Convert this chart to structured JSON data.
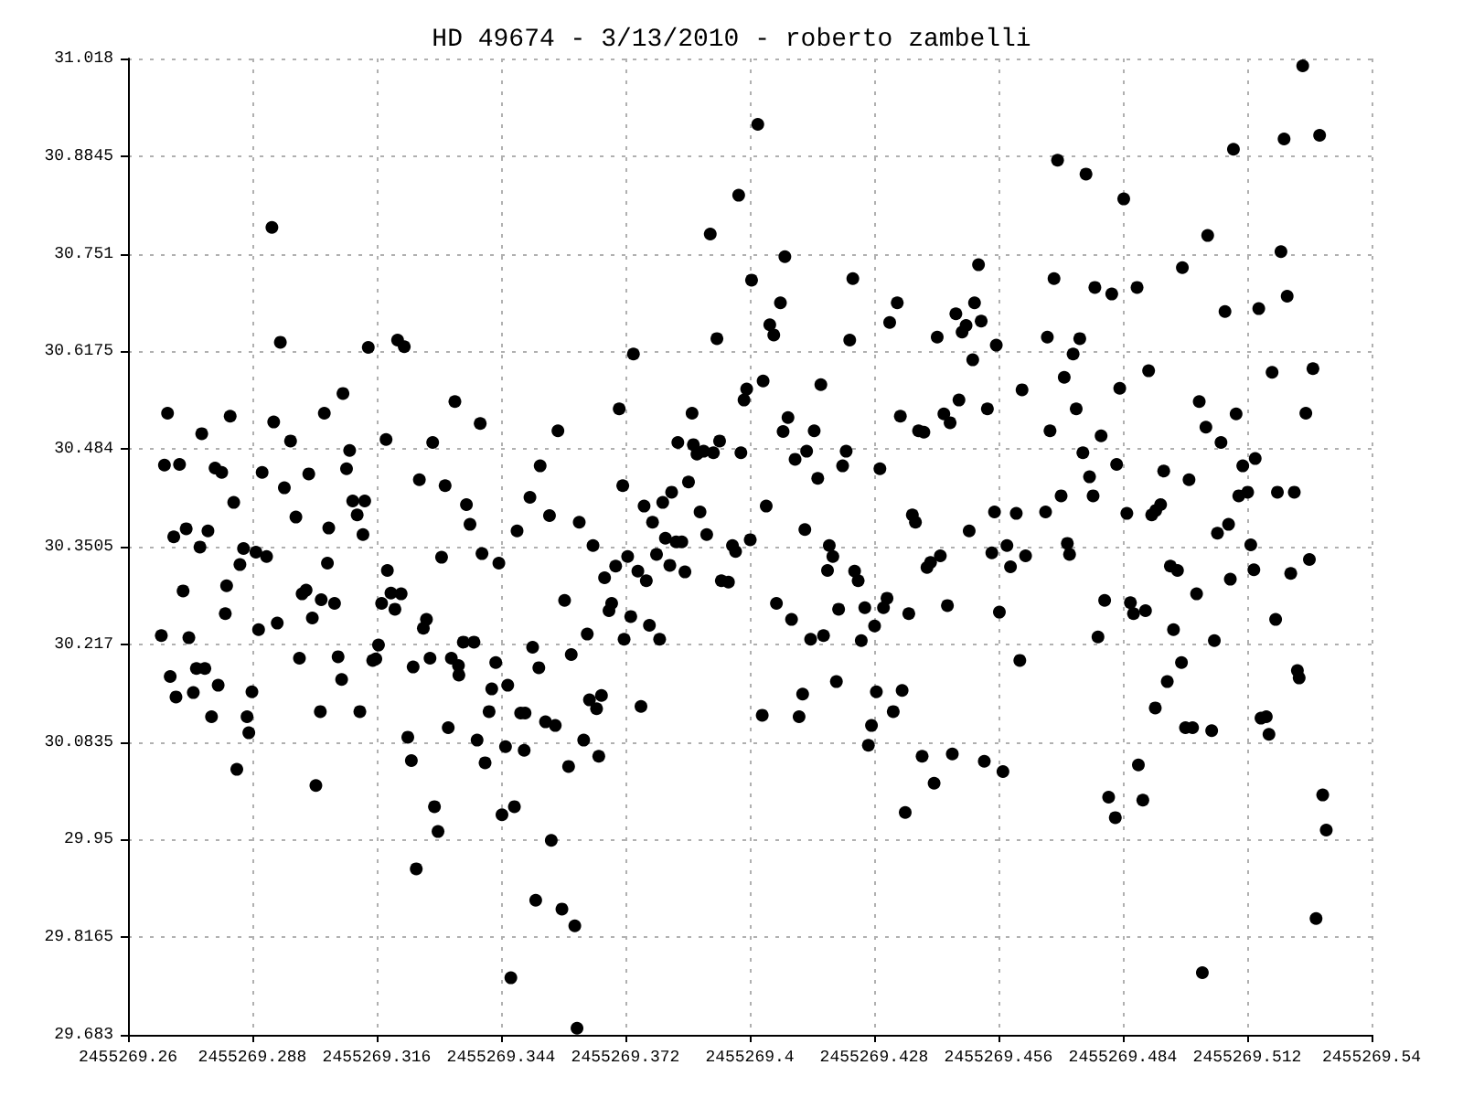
{
  "chart_data": {
    "type": "scatter",
    "title": "HD 49674 - 3/13/2010 - roberto zambelli",
    "color": "#000000",
    "marker": "circle",
    "grid": true,
    "xlim": [
      2455269.26,
      2455269.54
    ],
    "ylim": [
      29.683,
      31.018
    ],
    "xticks": [
      2455269.26,
      2455269.288,
      2455269.316,
      2455269.344,
      2455269.372,
      2455269.4,
      2455269.428,
      2455269.456,
      2455269.484,
      2455269.512,
      2455269.54
    ],
    "yticks": [
      29.683,
      29.8165,
      29.95,
      30.0835,
      30.217,
      30.3505,
      30.484,
      30.6175,
      30.751,
      30.8845,
      31.018
    ],
    "x": [
      2455269.2689,
      2455269.2682,
      2455269.2716,
      2455269.2766,
      2455269.283,
      2455269.2796,
      2455269.2811,
      2455269.2703,
      2455269.2731,
      2455269.2762,
      2455269.278,
      2455269.2838,
      2455269.2724,
      2455269.2675,
      2455269.2737,
      2455269.2695,
      2455269.2708,
      2455269.2747,
      2455269.2754,
      2455269.2773,
      2455269.2803,
      2455269.2788,
      2455269.2845,
      2455269.2819,
      2455269.2822,
      2455269.2852,
      2455269.286,
      2455269.2868,
      2455269.2872,
      2455269.2879,
      2455269.2888,
      2455269.2912,
      2455269.2894,
      2455269.2902,
      2455269.2924,
      2455269.2943,
      2455269.2928,
      2455269.2966,
      2455269.2952,
      2455269.2978,
      2455269.3007,
      2455269.3042,
      2455269.2936,
      2455269.2986,
      2455269.2992,
      2455269.3001,
      2455269.3015,
      2455269.3033,
      2455269.3023,
      2455269.3035,
      2455269.3049,
      2455269.3052,
      2455269.3084,
      2455269.3099,
      2455269.3092,
      2455269.3106,
      2455269.3133,
      2455269.3116,
      2455269.3129,
      2455269.3065,
      2455269.3073,
      2455269.3081,
      2455269.3122,
      2455269.3141,
      2455269.3181,
      2455269.3184,
      2455269.3171,
      2455269.3192,
      2455269.3201,
      2455269.3215,
      2455269.3164,
      2455269.3151,
      2455269.3158,
      2455269.3207,
      2455269.3222,
      2455269.3256,
      2455269.3286,
      2455269.3314,
      2455269.3306,
      2455269.3272,
      2455269.3265,
      2455269.3242,
      2455269.328,
      2455269.323,
      2455269.3238,
      2455269.329,
      2455269.3298,
      2455269.3249,
      2455269.3336,
      2455269.3362,
      2455269.337,
      2455269.3397,
      2455269.3393,
      2455269.3435,
      2455269.3328,
      2455269.3344,
      2455269.3345,
      2455269.3355,
      2455269.3379,
      2455269.3321,
      2455269.3386,
      2455269.3404,
      2455269.3413,
      2455269.3419,
      2455269.3428,
      2455269.3455,
      2455269.345,
      2455269.3492,
      2455269.3484,
      2455269.3494,
      2455269.3511,
      2455269.3525,
      2455269.3442,
      2455269.347,
      2455269.3462,
      2455269.3518,
      2455269.3505,
      2455269.3476,
      2455269.3528,
      2455269.3549,
      2455269.3568,
      2455269.3616,
      2455269.3647,
      2455269.3583,
      2455269.3598,
      2455269.3634,
      2455269.3673,
      2455269.3683,
      2455269.3689,
      2455269.3698,
      2455269.3706,
      2455269.3714,
      2455269.3725,
      2455269.3738,
      2455269.3732,
      2455269.3717,
      2455269.3748,
      2455269.3767,
      2455269.3774,
      2455269.3797,
      2455269.3755,
      2455269.3762,
      2455269.3781,
      2455269.379,
      2455269.3804,
      2455269.381,
      2455269.3824,
      2455269.382,
      2455269.3834,
      2455269.3847,
      2455269.3838,
      2455269.3854,
      2455269.3862,
      2455269.387,
      2455269.3873,
      2455269.3881,
      2455269.3896,
      2455269.3888,
      2455269.3903,
      2455269.3918,
      2455269.3932,
      2455269.3911,
      2455269.3926,
      2455269.3936,
      2455269.3952,
      2455269.3961,
      2455269.3968,
      2455269.398,
      2455269.3975,
      2455269.3987,
      2455269.3993,
      2455269.4004,
      2455269.4001,
      2455269.354,
      2455269.3562,
      2455269.3592,
      2455269.3626,
      2455269.3639,
      2455269.3655,
      2455269.3666,
      2455269.366,
      2455269.3553,
      2455269.3577,
      2455269.3606,
      2455269.3611,
      2455269.4018,
      2455269.4079,
      2455269.4069,
      2455269.4045,
      2455269.4054,
      2455269.403,
      2455269.4232,
      2455269.4225,
      2455269.416,
      2455269.4086,
      2455269.4075,
      2455269.4145,
      2455269.4102,
      2455269.4128,
      2455269.4153,
      2455269.4217,
      2455269.4209,
      2455269.4037,
      2455269.4124,
      2455269.4179,
      2455269.4187,
      2455269.4175,
      2455269.4236,
      2455269.4244,
      2455269.406,
      2455269.4094,
      2455269.4137,
      2455269.4166,
      2455269.42,
      2455269.4259,
      2455269.4251,
      2455269.4195,
      2455269.4119,
      2455269.4111,
      2455269.4028,
      2455269.4281,
      2455269.4301,
      2455269.4309,
      2455269.4358,
      2455269.4285,
      2455269.4274,
      2455269.4267,
      2455269.4323,
      2455269.4343,
      2455269.435,
      2455269.4388,
      2455269.4415,
      2455269.4456,
      2455269.4293,
      2455269.4315,
      2455269.4332,
      2455269.4339,
      2455269.438,
      2455269.4392,
      2455269.4366,
      2455269.4373,
      2455269.4399,
      2455269.4407,
      2455269.4429,
      2455269.4445,
      2455269.4422,
      2455269.4464,
      2455269.4478,
      2455269.4437,
      2455269.4451,
      2455269.4471,
      2455269.4487,
      2455269.4506,
      2455269.4521,
      2455269.4515,
      2455269.4502,
      2455269.4555,
      2455269.4535,
      2455269.4494,
      2455269.4551,
      2455269.4545,
      2455269.4579,
      2455269.4587,
      2455269.4621,
      2455269.46,
      2455269.4562,
      2455269.4608,
      2455269.4528,
      2455269.457,
      2455269.4613,
      2455269.467,
      2455269.4685,
      2455269.4693,
      2455269.4757,
      2455269.4842,
      2455269.4777,
      2455269.4815,
      2455269.4872,
      2455269.4743,
      2455269.4728,
      2455269.4708,
      2455269.4735,
      2455269.4676,
      2455269.4791,
      2455269.475,
      2455269.4765,
      2455269.4826,
      2455269.4773,
      2455269.4701,
      2455269.4666,
      2455269.4833,
      2455269.4898,
      2455269.4849,
      2455269.4932,
      2455269.4925,
      2455269.4905,
      2455269.4914,
      2455269.4715,
      2455269.472,
      2455269.4799,
      2455269.4784,
      2455269.4857,
      2455269.4864,
      2455269.4891,
      2455269.4947,
      2455269.4954,
      2455269.494,
      2455269.4913,
      2455269.4875,
      2455269.4885,
      2455269.4808,
      2455269.4823,
      2455269.4963,
      2455269.4972,
      2455269.4989,
      2455269.5006,
      2455269.4981,
      2455269.4997,
      2455269.504,
      2455269.5046,
      2455269.5012,
      2455269.5027,
      2455269.5061,
      2455269.5095,
      2455269.511,
      2455269.5138,
      2455269.5101,
      2455269.5121,
      2455269.5053,
      2455269.5078,
      2455269.5082,
      2455269.5128,
      2455269.5135,
      2455269.4974,
      2455269.5031,
      2455269.507,
      2455269.5089,
      2455269.5146,
      2455269.5196,
      2455269.521,
      2455269.5203,
      2455269.5245,
      2455269.5283,
      2455269.5176,
      2455269.5268,
      2455269.5252,
      2455269.5188,
      2455269.5226,
      2455269.5218,
      2455269.526,
      2455269.5184,
      2455269.5233,
      2455269.5237,
      2455269.5151,
      2455269.5163,
      2455269.5169,
      2455269.529,
      2455269.5298,
      2455269.5275,
      2455269.5019
    ],
    "values": [
      30.533,
      30.462,
      30.463,
      30.505,
      30.529,
      30.458,
      30.452,
      30.364,
      30.375,
      30.35,
      30.372,
      30.411,
      30.29,
      30.229,
      30.226,
      30.173,
      30.145,
      30.151,
      30.184,
      30.184,
      30.161,
      30.118,
      30.046,
      30.259,
      30.297,
      30.326,
      30.348,
      30.118,
      30.096,
      30.152,
      30.343,
      30.337,
      30.237,
      30.452,
      30.787,
      30.63,
      30.521,
      30.495,
      30.431,
      30.391,
      30.45,
      30.533,
      30.246,
      30.198,
      30.286,
      30.291,
      30.253,
      30.125,
      30.024,
      30.278,
      30.328,
      30.376,
      30.56,
      30.482,
      30.457,
      30.413,
      30.413,
      30.394,
      30.367,
      30.273,
      30.2,
      30.169,
      30.125,
      30.623,
      30.497,
      30.318,
      30.273,
      30.287,
      30.265,
      30.286,
      30.216,
      30.195,
      30.197,
      30.633,
      30.624,
      30.442,
      30.493,
      30.434,
      30.336,
      30.251,
      30.239,
      30.186,
      30.198,
      30.09,
      30.058,
      29.995,
      29.961,
      29.91,
      30.549,
      30.408,
      30.381,
      30.341,
      30.519,
      30.328,
      30.198,
      30.188,
      30.175,
      30.22,
      30.22,
      30.103,
      30.086,
      30.055,
      30.125,
      30.156,
      30.192,
      30.161,
      30.077,
      30.072,
      30.123,
      30.123,
      30.213,
      30.185,
      29.984,
      29.995,
      29.761,
      29.867,
      30.418,
      30.372,
      30.461,
      30.393,
      30.509,
      30.384,
      30.352,
      30.277,
      30.203,
      30.231,
      30.308,
      30.263,
      30.273,
      30.324,
      30.539,
      30.434,
      30.337,
      30.614,
      30.255,
      30.224,
      30.317,
      30.304,
      30.243,
      30.224,
      30.132,
      30.406,
      30.384,
      30.34,
      30.411,
      30.362,
      30.425,
      30.325,
      30.357,
      30.357,
      30.493,
      30.316,
      30.439,
      30.533,
      30.49,
      30.477,
      30.481,
      30.398,
      30.367,
      30.479,
      30.495,
      30.778,
      30.635,
      30.304,
      30.302,
      30.352,
      30.344,
      30.479,
      30.831,
      30.551,
      30.566,
      30.715,
      30.36,
      30.111,
      30.106,
      30.05,
      30.086,
      30.141,
      30.129,
      30.147,
      30.064,
      29.949,
      29.855,
      29.832,
      29.692,
      30.928,
      30.747,
      30.684,
      30.654,
      30.64,
      30.577,
      30.717,
      30.633,
      30.572,
      30.527,
      30.508,
      30.509,
      30.47,
      30.481,
      30.444,
      30.481,
      30.461,
      30.406,
      30.374,
      30.352,
      30.337,
      30.318,
      30.317,
      30.304,
      30.273,
      30.251,
      30.224,
      30.229,
      30.265,
      30.267,
      30.222,
      30.166,
      30.149,
      30.118,
      30.12,
      30.242,
      30.267,
      30.28,
      30.259,
      30.152,
      30.106,
      30.079,
      30.125,
      30.154,
      29.987,
      30.064,
      30.027,
      30.067,
      30.457,
      30.657,
      30.684,
      30.529,
      30.509,
      30.507,
      30.394,
      30.384,
      30.322,
      30.329,
      30.338,
      30.27,
      30.637,
      30.669,
      30.644,
      30.532,
      30.52,
      30.551,
      30.653,
      30.684,
      30.659,
      30.736,
      30.606,
      30.626,
      30.539,
      30.372,
      30.398,
      30.342,
      30.352,
      30.323,
      30.338,
      30.396,
      30.261,
      30.195,
      30.057,
      30.043,
      30.565,
      30.637,
      30.717,
      30.879,
      30.86,
      30.826,
      30.705,
      30.696,
      30.705,
      30.635,
      30.614,
      30.582,
      30.539,
      30.509,
      30.502,
      30.479,
      30.446,
      30.463,
      30.42,
      30.42,
      30.398,
      30.567,
      30.591,
      30.396,
      30.454,
      30.408,
      30.394,
      30.4,
      30.355,
      30.34,
      30.277,
      30.227,
      30.274,
      30.259,
      30.263,
      30.324,
      30.237,
      30.166,
      30.13,
      30.052,
      30.004,
      30.008,
      29.98,
      30.318,
      30.192,
      30.442,
      30.286,
      30.103,
      30.103,
      30.099,
      30.222,
      30.549,
      30.514,
      30.493,
      30.532,
      30.461,
      30.471,
      30.42,
      30.425,
      30.369,
      30.381,
      30.306,
      30.353,
      30.319,
      30.732,
      30.776,
      30.672,
      30.894,
      30.676,
      30.754,
      30.693,
      30.908,
      31.008,
      30.913,
      30.589,
      30.594,
      30.533,
      30.425,
      30.425,
      30.314,
      30.333,
      30.251,
      30.181,
      30.171,
      30.116,
      30.118,
      30.094,
      30.011,
      29.963,
      29.842,
      29.768
    ]
  }
}
